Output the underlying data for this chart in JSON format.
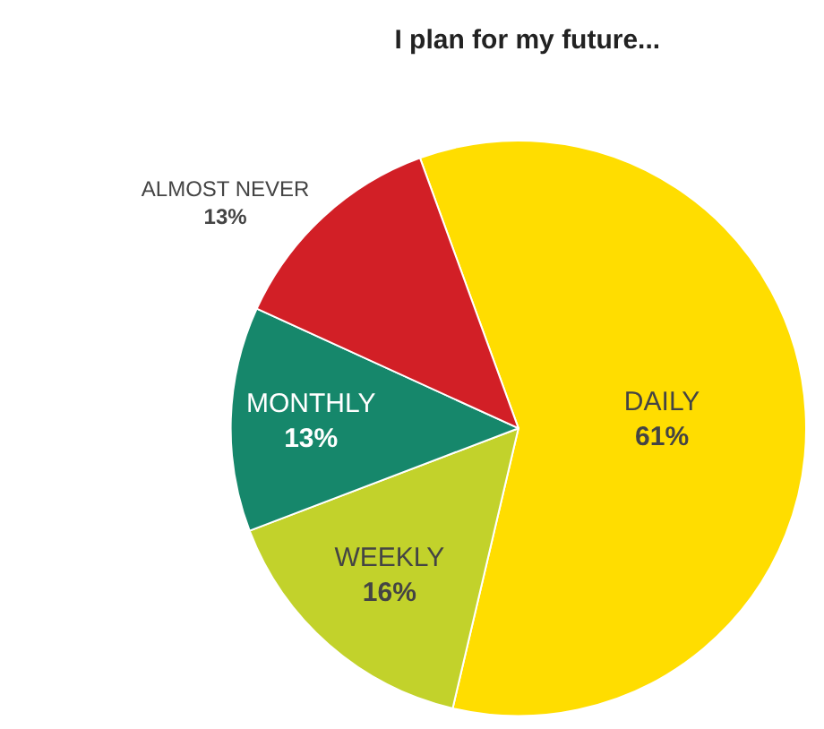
{
  "chart_data": {
    "type": "pie",
    "title": "I plan for my future...",
    "categories": [
      "DAILY",
      "WEEKLY",
      "MONTHLY",
      "ALMOST NEVER"
    ],
    "values": [
      61,
      16,
      13,
      13
    ],
    "value_labels": [
      "61%",
      "16%",
      "13%",
      "13%"
    ],
    "colors": [
      "#ffdd00",
      "#c2d22b",
      "#16876b",
      "#d21f26"
    ],
    "legend": false
  }
}
